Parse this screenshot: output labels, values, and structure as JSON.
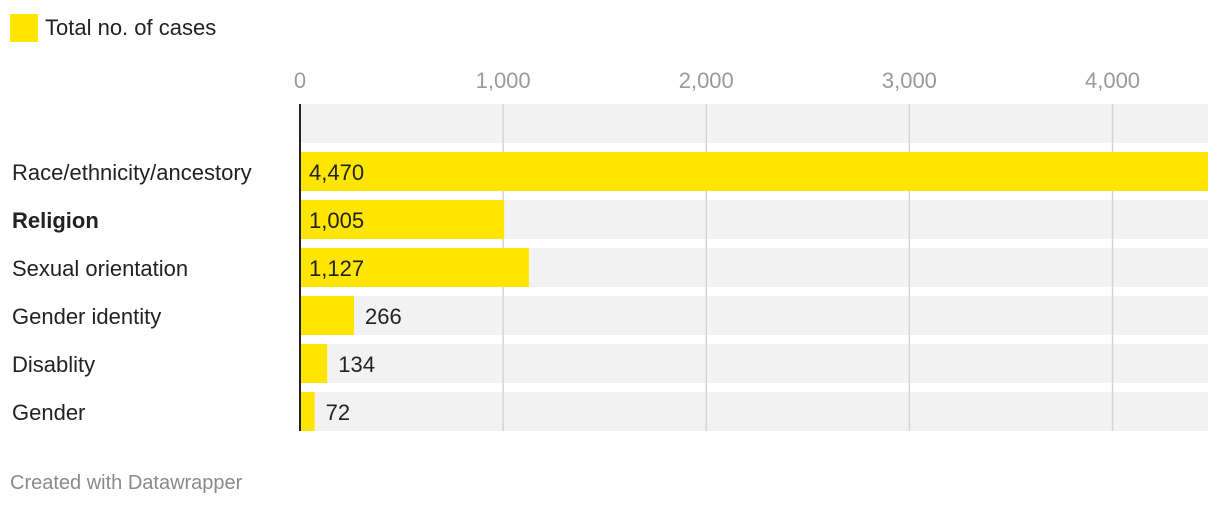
{
  "legend": {
    "label": "Total no. of cases",
    "color": "#ffe600"
  },
  "footer": {
    "text": "Created with Datawrapper"
  },
  "colors": {
    "bar": "#ffe600",
    "track": "#f2f2f2",
    "grid": "#d4d4d4",
    "axis": "#222222",
    "tick_label": "#9a9a9a",
    "value_label": "#222222",
    "category_label": "#222222"
  },
  "chart_data": {
    "type": "bar",
    "orientation": "horizontal",
    "title": "",
    "xlabel": "",
    "ylabel": "",
    "xlim": [
      0,
      4470
    ],
    "ticks": [
      0,
      1000,
      2000,
      3000,
      4000
    ],
    "tick_labels": [
      "0",
      "1,000",
      "2,000",
      "3,000",
      "4,000"
    ],
    "grid": true,
    "legend_position": "top-left",
    "series": [
      {
        "name": "Total no. of cases",
        "values": [
          4470,
          1005,
          1127,
          266,
          134,
          72
        ]
      }
    ],
    "categories": [
      "Race/ethnicity/ancestory",
      "Religion",
      "Sexual orientation",
      "Gender identity",
      "Disablity",
      "Gender"
    ],
    "bold_categories": [
      "Religion"
    ],
    "value_labels": [
      "4,470",
      "1,005",
      "1,127",
      "266",
      "134",
      "72"
    ]
  }
}
